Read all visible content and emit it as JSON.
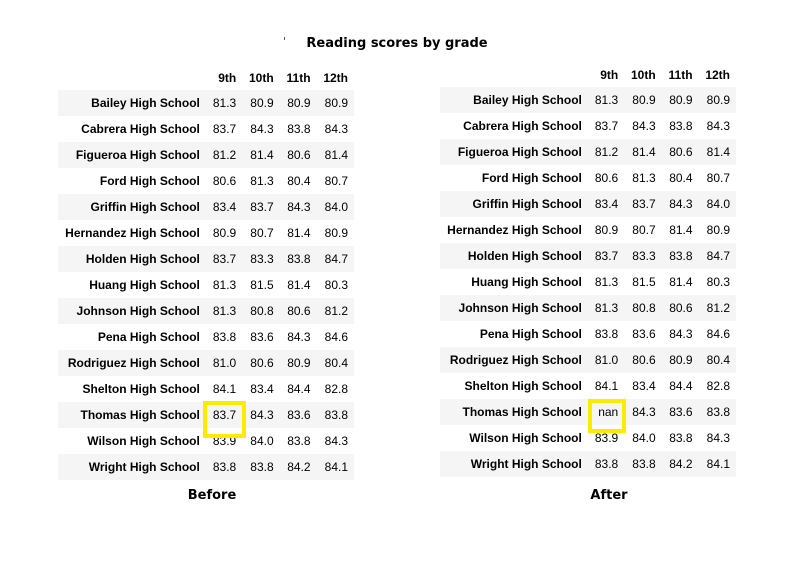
{
  "title": "Reading scores by grade",
  "columns": [
    "9th",
    "10th",
    "11th",
    "12th"
  ],
  "before": {
    "caption": "Before",
    "rows": [
      {
        "school": "Bailey High School",
        "values": [
          "81.3",
          "80.9",
          "80.9",
          "80.9"
        ]
      },
      {
        "school": "Cabrera High School",
        "values": [
          "83.7",
          "84.3",
          "83.8",
          "84.3"
        ]
      },
      {
        "school": "Figueroa High School",
        "values": [
          "81.2",
          "81.4",
          "80.6",
          "81.4"
        ]
      },
      {
        "school": "Ford High School",
        "values": [
          "80.6",
          "81.3",
          "80.4",
          "80.7"
        ]
      },
      {
        "school": "Griffin High School",
        "values": [
          "83.4",
          "83.7",
          "84.3",
          "84.0"
        ]
      },
      {
        "school": "Hernandez High School",
        "values": [
          "80.9",
          "80.7",
          "81.4",
          "80.9"
        ]
      },
      {
        "school": "Holden High School",
        "values": [
          "83.7",
          "83.3",
          "83.8",
          "84.7"
        ]
      },
      {
        "school": "Huang High School",
        "values": [
          "81.3",
          "81.5",
          "81.4",
          "80.3"
        ]
      },
      {
        "school": "Johnson High School",
        "values": [
          "81.3",
          "80.8",
          "80.6",
          "81.2"
        ]
      },
      {
        "school": "Pena High School",
        "values": [
          "83.8",
          "83.6",
          "84.3",
          "84.6"
        ]
      },
      {
        "school": "Rodriguez High School",
        "values": [
          "81.0",
          "80.6",
          "80.9",
          "80.4"
        ]
      },
      {
        "school": "Shelton High School",
        "values": [
          "84.1",
          "83.4",
          "84.4",
          "82.8"
        ]
      },
      {
        "school": "Thomas High School",
        "values": [
          "83.7",
          "84.3",
          "83.6",
          "83.8"
        ]
      },
      {
        "school": "Wilson High School",
        "values": [
          "83.9",
          "84.0",
          "83.8",
          "84.3"
        ]
      },
      {
        "school": "Wright High School",
        "values": [
          "83.8",
          "83.8",
          "84.2",
          "84.1"
        ]
      }
    ]
  },
  "after": {
    "caption": "After",
    "rows": [
      {
        "school": "Bailey High School",
        "values": [
          "81.3",
          "80.9",
          "80.9",
          "80.9"
        ]
      },
      {
        "school": "Cabrera High School",
        "values": [
          "83.7",
          "84.3",
          "83.8",
          "84.3"
        ]
      },
      {
        "school": "Figueroa High School",
        "values": [
          "81.2",
          "81.4",
          "80.6",
          "81.4"
        ]
      },
      {
        "school": "Ford High School",
        "values": [
          "80.6",
          "81.3",
          "80.4",
          "80.7"
        ]
      },
      {
        "school": "Griffin High School",
        "values": [
          "83.4",
          "83.7",
          "84.3",
          "84.0"
        ]
      },
      {
        "school": "Hernandez High School",
        "values": [
          "80.9",
          "80.7",
          "81.4",
          "80.9"
        ]
      },
      {
        "school": "Holden High School",
        "values": [
          "83.7",
          "83.3",
          "83.8",
          "84.7"
        ]
      },
      {
        "school": "Huang High School",
        "values": [
          "81.3",
          "81.5",
          "81.4",
          "80.3"
        ]
      },
      {
        "school": "Johnson High School",
        "values": [
          "81.3",
          "80.8",
          "80.6",
          "81.2"
        ]
      },
      {
        "school": "Pena High School",
        "values": [
          "83.8",
          "83.6",
          "84.3",
          "84.6"
        ]
      },
      {
        "school": "Rodriguez High School",
        "values": [
          "81.0",
          "80.6",
          "80.9",
          "80.4"
        ]
      },
      {
        "school": "Shelton High School",
        "values": [
          "84.1",
          "83.4",
          "84.4",
          "82.8"
        ]
      },
      {
        "school": "Thomas High School",
        "values": [
          "nan",
          "84.3",
          "83.6",
          "83.8"
        ]
      },
      {
        "school": "Wilson High School",
        "values": [
          "83.9",
          "84.0",
          "83.8",
          "84.3"
        ]
      },
      {
        "school": "Wright High School",
        "values": [
          "83.8",
          "83.8",
          "84.2",
          "84.1"
        ]
      }
    ]
  },
  "highlight_color": "#ffeb00"
}
